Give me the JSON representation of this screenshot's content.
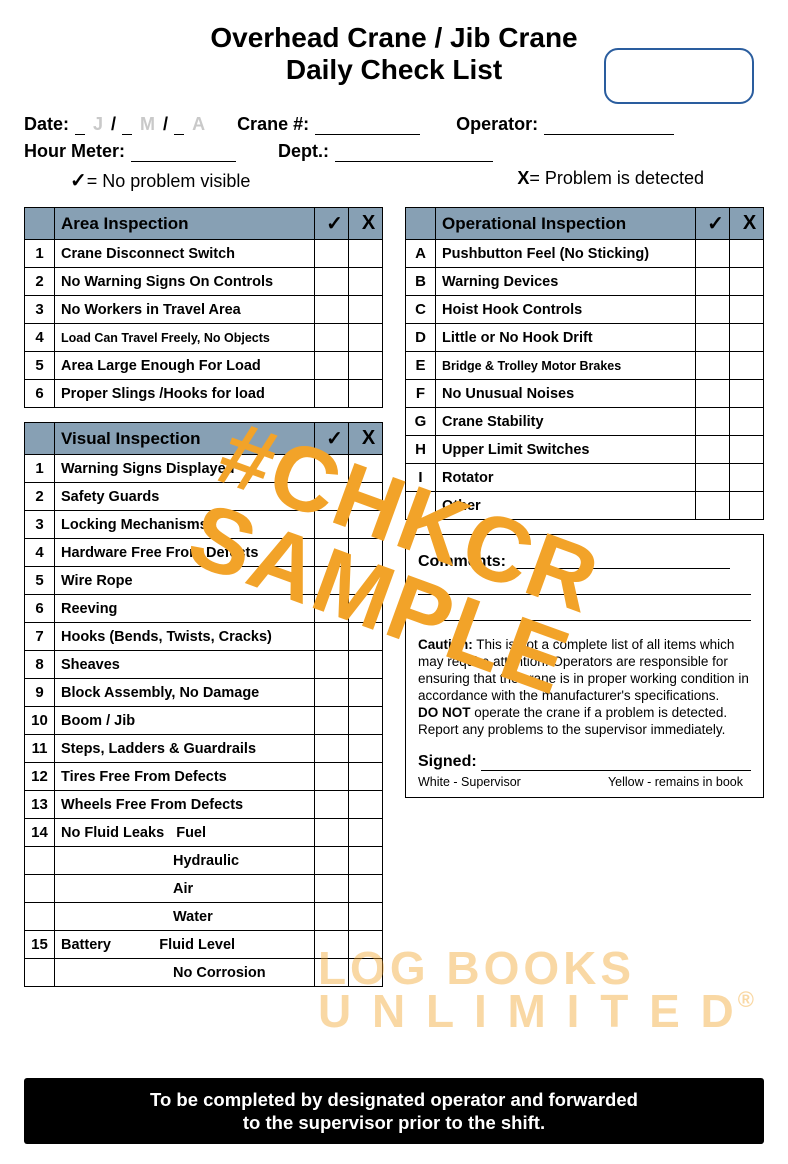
{
  "title_l1": "Overhead Crane / Jib Crane",
  "title_l2": "Daily Check List",
  "fields": {
    "date": "Date:",
    "j": "J",
    "m": "M",
    "a": "A",
    "crane": "Crane #:",
    "operator": "Operator:",
    "hour": "Hour Meter:",
    "dept": "Dept.:"
  },
  "legend": {
    "ok": "= No problem visible",
    "bad": "= Problem is detected",
    "check": "✓",
    "x": "X"
  },
  "area": {
    "title": "Area Inspection",
    "rows": [
      {
        "n": "1",
        "d": "Crane Disconnect Switch"
      },
      {
        "n": "2",
        "d": "No Warning Signs On Controls"
      },
      {
        "n": "3",
        "d": "No Workers in Travel Area"
      },
      {
        "n": "4",
        "d": "Load Can Travel Freely, No Objects",
        "sm": true
      },
      {
        "n": "5",
        "d": "Area Large Enough For Load"
      },
      {
        "n": "6",
        "d": "Proper Slings /Hooks for load"
      }
    ]
  },
  "visual": {
    "title": "Visual Inspection",
    "rows": [
      {
        "n": "1",
        "d": "Warning Signs Displayed"
      },
      {
        "n": "2",
        "d": "Safety Guards"
      },
      {
        "n": "3",
        "d": "Locking Mechanisms"
      },
      {
        "n": "4",
        "d": "Hardware Free From Defects"
      },
      {
        "n": "5",
        "d": "Wire Rope"
      },
      {
        "n": "6",
        "d": "Reeving"
      },
      {
        "n": "7",
        "d": "Hooks (Bends, Twists, Cracks)"
      },
      {
        "n": "8",
        "d": "Sheaves"
      },
      {
        "n": "9",
        "d": "Block Assembly, No Damage"
      },
      {
        "n": "10",
        "d": "Boom / Jib"
      },
      {
        "n": "11",
        "d": "Steps, Ladders & Guardrails"
      },
      {
        "n": "12",
        "d": "Tires Free From Defects"
      },
      {
        "n": "13",
        "d": "Wheels Free From Defects"
      },
      {
        "n": "14",
        "d": "No Fluid Leaks   Fuel"
      },
      {
        "n": "",
        "d": "Hydraulic",
        "sub": true
      },
      {
        "n": "",
        "d": "Air",
        "sub": true
      },
      {
        "n": "",
        "d": "Water",
        "sub": true
      },
      {
        "n": "15",
        "d": "Battery            Fluid Level"
      },
      {
        "n": "",
        "d": "No Corrosion",
        "sub": true
      }
    ]
  },
  "oper": {
    "title": "Operational Inspection",
    "rows": [
      {
        "n": "A",
        "d": "Pushbutton Feel (No Sticking)"
      },
      {
        "n": "B",
        "d": "Warning Devices"
      },
      {
        "n": "C",
        "d": "Hoist Hook Controls"
      },
      {
        "n": "D",
        "d": "Little or No Hook Drift"
      },
      {
        "n": "E",
        "d": "Bridge & Trolley Motor Brakes",
        "sm": true
      },
      {
        "n": "F",
        "d": "No Unusual Noises"
      },
      {
        "n": "G",
        "d": "Crane Stability"
      },
      {
        "n": "H",
        "d": "Upper Limit Switches"
      },
      {
        "n": "I",
        "d": "Rotator"
      },
      {
        "n": "J",
        "d": "Other"
      }
    ]
  },
  "comments": {
    "hdr": "Comments:",
    "caution_b": "Caution:",
    "caution": " This is not a complete list of all items which may require attention. Operators are responsible for ensuring that the crane is in proper working condition in accordance with the manufacturer's specifications.",
    "donot_b": "DO NOT",
    "donot": " operate the crane if a problem is detected. Report any problems to the supervisor immediately.",
    "signed": "Signed:",
    "white": "White - Supervisor",
    "yellow": "Yellow - remains in book"
  },
  "footer_l1": "To be completed by designated operator and forwarded",
  "footer_l2": "to the supervisor prior to the shift.",
  "wm1a": "#CHKCR",
  "wm1b": "SAMPLE",
  "wm2a": "LOG BOOKS",
  "wm2b": "U N L I M I T E D"
}
